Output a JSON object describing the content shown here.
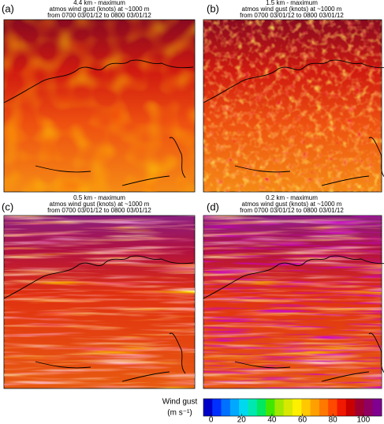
{
  "panels": [
    {
      "label": "(a)",
      "title": [
        "4.4 km - maximum",
        "atmos wind gust (knots) at ~1000 m",
        "from 0700 03/01/12 to 0800 03/01/12"
      ]
    },
    {
      "label": "(b)",
      "title": [
        "1.5 km - maximum",
        "atmos wind gust (knots) at ~1000 m",
        "from 0700 03/01/12 to 0800 03/01/12"
      ]
    },
    {
      "label": "(c)",
      "title": [
        "0.5 km - maximum",
        "atmos wind gust (knots) at ~1000 m",
        "from 0700 03/01/12 to 0800 03/01/12"
      ]
    },
    {
      "label": "(d)",
      "title": [
        "0.2 km - maximum",
        "atmos wind gust (knots) at ~1000 m",
        "from 0700 03/01/12 to 0800 03/01/12"
      ]
    }
  ],
  "colorbar": {
    "title": "Wind gust",
    "units": "(m s⁻¹)",
    "colors": [
      "#0000c8",
      "#0030ff",
      "#0070ff",
      "#00a8ff",
      "#00d8f0",
      "#00e8b0",
      "#00e860",
      "#40e800",
      "#a0e800",
      "#d8e800",
      "#fff000",
      "#ffc800",
      "#ffa000",
      "#ff7800",
      "#ff4800",
      "#f01800",
      "#c80000",
      "#a00030",
      "#900060",
      "#800090"
    ],
    "lim": [
      -5,
      112
    ],
    "ticks": [
      0,
      20,
      40,
      60,
      80,
      100
    ]
  }
}
